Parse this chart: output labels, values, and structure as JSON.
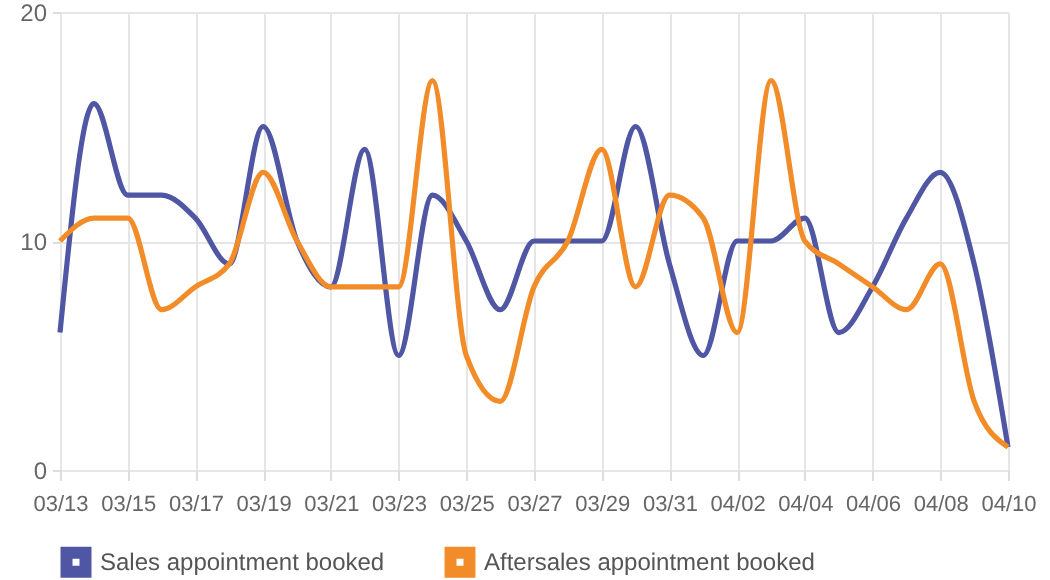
{
  "chart_data": {
    "type": "line",
    "categories": [
      "03/13",
      null,
      "03/15",
      null,
      "03/17",
      null,
      "03/19",
      null,
      "03/21",
      null,
      "03/23",
      null,
      "03/25",
      null,
      "03/27",
      null,
      "03/29",
      null,
      "03/31",
      null,
      "04/02",
      null,
      "04/04",
      null,
      "04/06",
      null,
      "04/08",
      null,
      "04/10"
    ],
    "series": [
      {
        "name": "Sales appointment booked",
        "color": "#4f56a3",
        "values": [
          6,
          16,
          12,
          12,
          11,
          9,
          15,
          10,
          8,
          14,
          5,
          12,
          10,
          7,
          10,
          10,
          10,
          15,
          9,
          5,
          10,
          10,
          11,
          6,
          8,
          11,
          13,
          9,
          1
        ]
      },
      {
        "name": "Aftersales appointment booked",
        "color": "#f28c28",
        "values": [
          10,
          11,
          11,
          7,
          8,
          9,
          13,
          10,
          8,
          8,
          8,
          17,
          5,
          3,
          8,
          10,
          14,
          8,
          12,
          11,
          6,
          17,
          10,
          9,
          8,
          7,
          9,
          3,
          1
        ]
      }
    ],
    "ylim": [
      0,
      20
    ],
    "yticks": [
      0,
      10,
      20
    ],
    "grid": true,
    "legend": "bottom",
    "marker": "none",
    "line_style": "solid"
  }
}
